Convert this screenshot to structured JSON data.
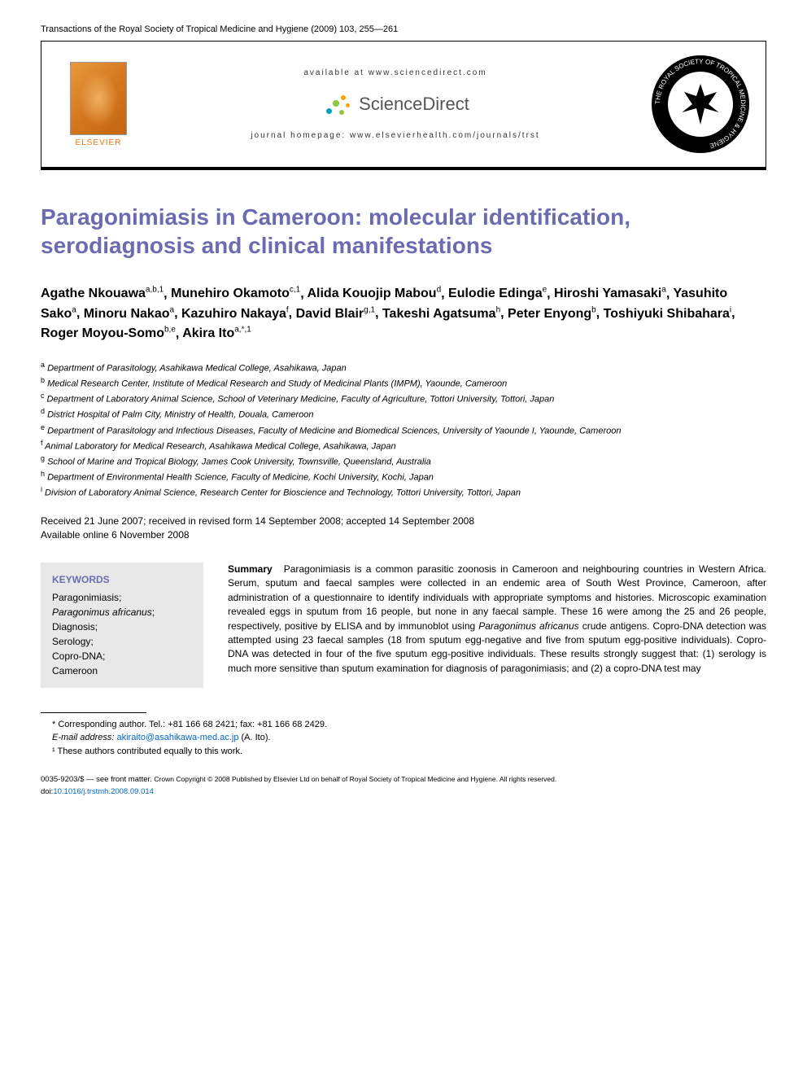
{
  "header": {
    "journal_citation": "Transactions of the Royal Society of Tropical Medicine and Hygiene (2009) 103, 255—261",
    "available_at": "available at www.sciencedirect.com",
    "sciencedirect": "ScienceDirect",
    "homepage": "journal homepage: www.elsevierhealth.com/journals/trst",
    "elsevier": "ELSEVIER"
  },
  "article": {
    "title": "Paragonimiasis in Cameroon: molecular identification, serodiagnosis and clinical manifestations"
  },
  "authors": [
    {
      "name": "Agathe Nkouawa",
      "affil": "a,b,1"
    },
    {
      "name": "Munehiro Okamoto",
      "affil": "c,1"
    },
    {
      "name": "Alida Kouojip Mabou",
      "affil": "d"
    },
    {
      "name": "Eulodie Edinga",
      "affil": "e"
    },
    {
      "name": "Hiroshi Yamasaki",
      "affil": "a"
    },
    {
      "name": "Yasuhito Sako",
      "affil": "a"
    },
    {
      "name": "Minoru Nakao",
      "affil": "a"
    },
    {
      "name": "Kazuhiro Nakaya",
      "affil": "f"
    },
    {
      "name": "David Blair",
      "affil": "g,1"
    },
    {
      "name": "Takeshi Agatsuma",
      "affil": "h"
    },
    {
      "name": "Peter Enyong",
      "affil": "b"
    },
    {
      "name": "Toshiyuki Shibahara",
      "affil": "i"
    },
    {
      "name": "Roger Moyou-Somo",
      "affil": "b,e"
    },
    {
      "name": "Akira Ito",
      "affil": "a,*,1"
    }
  ],
  "affiliations": [
    {
      "key": "a",
      "text": "Department of Parasitology, Asahikawa Medical College, Asahikawa, Japan"
    },
    {
      "key": "b",
      "text": "Medical Research Center, Institute of Medical Research and Study of Medicinal Plants (IMPM), Yaounde, Cameroon"
    },
    {
      "key": "c",
      "text": "Department of Laboratory Animal Science, School of Veterinary Medicine, Faculty of Agriculture, Tottori University, Tottori, Japan"
    },
    {
      "key": "d",
      "text": "District Hospital of Palm City, Ministry of Health, Douala, Cameroon"
    },
    {
      "key": "e",
      "text": "Department of Parasitology and Infectious Diseases, Faculty of Medicine and Biomedical Sciences, University of Yaounde I, Yaounde, Cameroon"
    },
    {
      "key": "f",
      "text": "Animal Laboratory for Medical Research, Asahikawa Medical College, Asahikawa, Japan"
    },
    {
      "key": "g",
      "text": "School of Marine and Tropical Biology, James Cook University, Townsville, Queensland, Australia"
    },
    {
      "key": "h",
      "text": "Department of Environmental Health Science, Faculty of Medicine, Kochi University, Kochi, Japan"
    },
    {
      "key": "i",
      "text": "Division of Laboratory Animal Science, Research Center for Bioscience and Technology, Tottori University, Tottori, Japan"
    }
  ],
  "dates": {
    "line1": "Received 21 June 2007; received in revised form 14 September 2008; accepted 14 September 2008",
    "line2": "Available online 6 November 2008"
  },
  "keywords": {
    "title": "KEYWORDS",
    "items": [
      "Paragonimiasis;",
      "Paragonimus africanus;",
      "Diagnosis;",
      "Serology;",
      "Copro-DNA;",
      "Cameroon"
    ],
    "italic_index": 1
  },
  "summary": {
    "label": "Summary",
    "text_parts": [
      "Paragonimiasis is a common parasitic zoonosis in Cameroon and neighbouring countries in Western Africa. Serum, sputum and faecal samples were collected in an endemic area of South West Province, Cameroon, after administration of a questionnaire to identify individuals with appropriate symptoms and histories. Microscopic examination revealed eggs in sputum from 16 people, but none in any faecal sample. These 16 were among the 25 and 26 people, respectively, positive by ELISA and by immunoblot using ",
      "Paragonimus africanus",
      " crude antigens. Copro-DNA detection was attempted using 23 faecal samples (18 from sputum egg-negative and five from sputum egg-positive individuals). Copro-DNA was detected in four of the five sputum egg-positive individuals. These results strongly suggest that: (1) serology is much more sensitive than sputum examination for diagnosis of paragonimiasis; and (2) a copro-DNA test may"
    ]
  },
  "footnotes": {
    "corresponding": "* Corresponding author. Tel.: +81 166 68 2421; fax: +81 166 68 2429.",
    "email_label": "E-mail address:",
    "email": "akiraito@asahikawa-med.ac.jp",
    "email_who": " (A. Ito).",
    "contrib": "¹ These authors contributed equally to this work."
  },
  "copyright": {
    "issn": "0035-9203/$ — see front matter. ",
    "crown": "Crown Copyright © 2008 Published by Elsevier Ltd on behalf of Royal Society of Tropical Medicine and Hygiene. All rights reserved.",
    "doi_label": "doi:",
    "doi": "10.1016/j.trstmh.2008.09.014"
  },
  "colors": {
    "title_color": "#6b6bb0",
    "link_color": "#0066cc",
    "keyword_bg": "#e8e8e8"
  }
}
